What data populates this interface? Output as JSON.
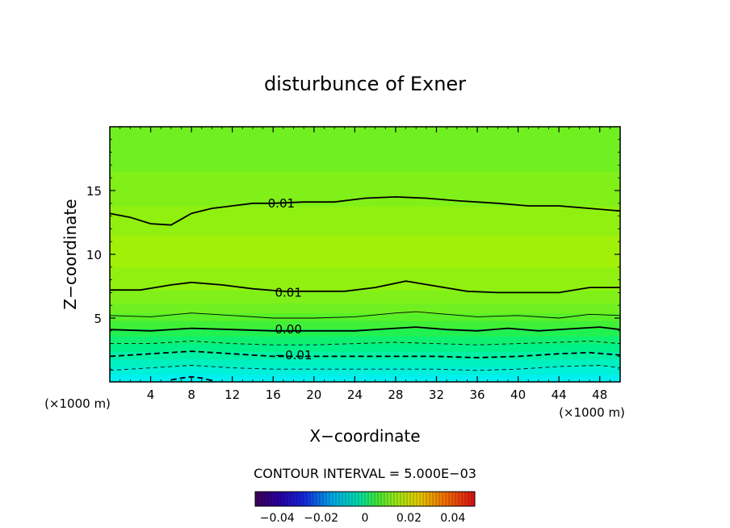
{
  "chart_data": {
    "type": "contour",
    "title": "disturbunce of Exner",
    "xlabel": "X−coordinate",
    "ylabel": "Z−coordinate",
    "x_unit_left": "(×1000 m)",
    "x_unit_right": "(×1000 m)",
    "xlim": [
      0,
      50
    ],
    "ylim": [
      0,
      20
    ],
    "x_ticks": [
      4,
      8,
      12,
      16,
      20,
      24,
      28,
      32,
      36,
      40,
      44,
      48
    ],
    "x_tick_labels": [
      "4",
      "8",
      "12",
      "16",
      "20",
      "24",
      "28",
      "32",
      "36",
      "40",
      "44",
      "48"
    ],
    "y_ticks": [
      5,
      10,
      15
    ],
    "y_tick_labels": [
      "5",
      "10",
      "15"
    ],
    "contour_interval_label": "CONTOUR INTERVAL = 5.000E−03",
    "contour_labels": [
      {
        "text": "0.01",
        "x": 16.8,
        "y": 14.0
      },
      {
        "text": "0.01",
        "x": 17.5,
        "y": 7.0
      },
      {
        "text": "0.00",
        "x": 17.5,
        "y": 4.1
      },
      {
        "text": "−0.01",
        "x": 18.0,
        "y": 2.1
      }
    ],
    "contours": [
      {
        "level": 0.01,
        "style": "solid-bold",
        "points": [
          [
            0,
            13.2
          ],
          [
            2,
            12.9
          ],
          [
            4,
            12.4
          ],
          [
            6,
            12.3
          ],
          [
            8,
            13.2
          ],
          [
            10,
            13.6
          ],
          [
            12,
            13.8
          ],
          [
            14,
            14.0
          ],
          [
            16,
            14.0
          ],
          [
            19,
            14.1
          ],
          [
            22,
            14.1
          ],
          [
            25,
            14.4
          ],
          [
            28,
            14.5
          ],
          [
            31,
            14.4
          ],
          [
            34,
            14.2
          ],
          [
            38,
            14.0
          ],
          [
            41,
            13.8
          ],
          [
            44,
            13.8
          ],
          [
            47,
            13.6
          ],
          [
            50,
            13.4
          ]
        ]
      },
      {
        "level": 0.01,
        "style": "solid-bold",
        "points": [
          [
            0,
            7.2
          ],
          [
            3,
            7.2
          ],
          [
            6,
            7.6
          ],
          [
            8,
            7.8
          ],
          [
            11,
            7.6
          ],
          [
            14,
            7.3
          ],
          [
            17,
            7.1
          ],
          [
            20,
            7.1
          ],
          [
            23,
            7.1
          ],
          [
            26,
            7.4
          ],
          [
            29,
            7.9
          ],
          [
            32,
            7.5
          ],
          [
            35,
            7.1
          ],
          [
            38,
            7.0
          ],
          [
            41,
            7.0
          ],
          [
            44,
            7.0
          ],
          [
            47,
            7.4
          ],
          [
            50,
            7.4
          ]
        ]
      },
      {
        "level": 0.005,
        "style": "solid-thin",
        "points": [
          [
            0,
            5.2
          ],
          [
            4,
            5.1
          ],
          [
            8,
            5.4
          ],
          [
            12,
            5.2
          ],
          [
            16,
            5.0
          ],
          [
            20,
            5.0
          ],
          [
            24,
            5.1
          ],
          [
            28,
            5.4
          ],
          [
            30,
            5.5
          ],
          [
            33,
            5.3
          ],
          [
            36,
            5.1
          ],
          [
            40,
            5.2
          ],
          [
            44,
            5.0
          ],
          [
            47,
            5.3
          ],
          [
            50,
            5.2
          ]
        ]
      },
      {
        "level": 0.0,
        "style": "solid-bold",
        "points": [
          [
            0,
            4.1
          ],
          [
            4,
            4.0
          ],
          [
            8,
            4.2
          ],
          [
            12,
            4.1
          ],
          [
            16,
            4.0
          ],
          [
            20,
            4.0
          ],
          [
            24,
            4.0
          ],
          [
            28,
            4.2
          ],
          [
            30,
            4.3
          ],
          [
            33,
            4.1
          ],
          [
            36,
            4.0
          ],
          [
            39,
            4.2
          ],
          [
            42,
            4.0
          ],
          [
            46,
            4.2
          ],
          [
            48,
            4.3
          ],
          [
            50,
            4.1
          ]
        ]
      },
      {
        "level": -0.005,
        "style": "dashed-thin",
        "points": [
          [
            0,
            3.0
          ],
          [
            4,
            3.0
          ],
          [
            8,
            3.2
          ],
          [
            12,
            3.0
          ],
          [
            16,
            2.9
          ],
          [
            20,
            2.9
          ],
          [
            24,
            3.0
          ],
          [
            28,
            3.1
          ],
          [
            32,
            3.0
          ],
          [
            36,
            2.9
          ],
          [
            40,
            3.0
          ],
          [
            44,
            3.1
          ],
          [
            47,
            3.2
          ],
          [
            50,
            3.0
          ]
        ]
      },
      {
        "level": -0.01,
        "style": "dashed-bold",
        "points": [
          [
            0,
            2.0
          ],
          [
            4,
            2.2
          ],
          [
            8,
            2.4
          ],
          [
            12,
            2.2
          ],
          [
            16,
            2.0
          ],
          [
            20,
            2.0
          ],
          [
            24,
            2.0
          ],
          [
            28,
            2.0
          ],
          [
            32,
            2.0
          ],
          [
            36,
            1.9
          ],
          [
            40,
            2.0
          ],
          [
            44,
            2.2
          ],
          [
            47,
            2.3
          ],
          [
            50,
            2.1
          ]
        ]
      },
      {
        "level": -0.015,
        "style": "dashed-thin",
        "points": [
          [
            0,
            0.9
          ],
          [
            4,
            1.1
          ],
          [
            8,
            1.3
          ],
          [
            12,
            1.1
          ],
          [
            16,
            1.0
          ],
          [
            20,
            1.0
          ],
          [
            24,
            1.0
          ],
          [
            28,
            1.0
          ],
          [
            32,
            1.0
          ],
          [
            36,
            0.9
          ],
          [
            40,
            1.0
          ],
          [
            44,
            1.2
          ],
          [
            48,
            1.3
          ],
          [
            50,
            1.1
          ]
        ]
      },
      {
        "level": -0.02,
        "style": "dashed-bold",
        "points": [
          [
            6,
            0.15
          ],
          [
            7,
            0.3
          ],
          [
            8,
            0.4
          ],
          [
            9,
            0.3
          ],
          [
            10,
            0.1
          ]
        ]
      }
    ],
    "colorbar": {
      "min": -0.05,
      "max": 0.05,
      "tick_values": [
        -0.04,
        -0.02,
        0,
        0.02,
        0.04
      ],
      "tick_labels": [
        "−0.04",
        "−0.02",
        "0",
        "0.02",
        "0.04"
      ]
    },
    "fill_bands": [
      {
        "z_from": 0.0,
        "z_to": 0.6,
        "color": "#00f0f0"
      },
      {
        "z_from": 0.6,
        "z_to": 1.2,
        "color": "#00f0d8"
      },
      {
        "z_from": 1.2,
        "z_to": 1.8,
        "color": "#00f0c0"
      },
      {
        "z_from": 1.8,
        "z_to": 2.4,
        "color": "#00f0a6"
      },
      {
        "z_from": 2.4,
        "z_to": 3.0,
        "color": "#00f08a"
      },
      {
        "z_from": 3.0,
        "z_to": 3.6,
        "color": "#10f070"
      },
      {
        "z_from": 3.6,
        "z_to": 4.2,
        "color": "#20f050"
      },
      {
        "z_from": 4.2,
        "z_to": 4.8,
        "color": "#40f038"
      },
      {
        "z_from": 4.8,
        "z_to": 5.4,
        "color": "#58f028"
      },
      {
        "z_from": 5.4,
        "z_to": 6.2,
        "color": "#70f020"
      },
      {
        "z_from": 6.2,
        "z_to": 7.2,
        "color": "#80f018"
      },
      {
        "z_from": 7.2,
        "z_to": 9.0,
        "color": "#90f010"
      },
      {
        "z_from": 9.0,
        "z_to": 11.5,
        "color": "#a0f008"
      },
      {
        "z_from": 11.5,
        "z_to": 13.8,
        "color": "#90f010"
      },
      {
        "z_from": 13.8,
        "z_to": 16.5,
        "color": "#80f018"
      },
      {
        "z_from": 16.5,
        "z_to": 20.0,
        "color": "#70f020"
      }
    ]
  }
}
